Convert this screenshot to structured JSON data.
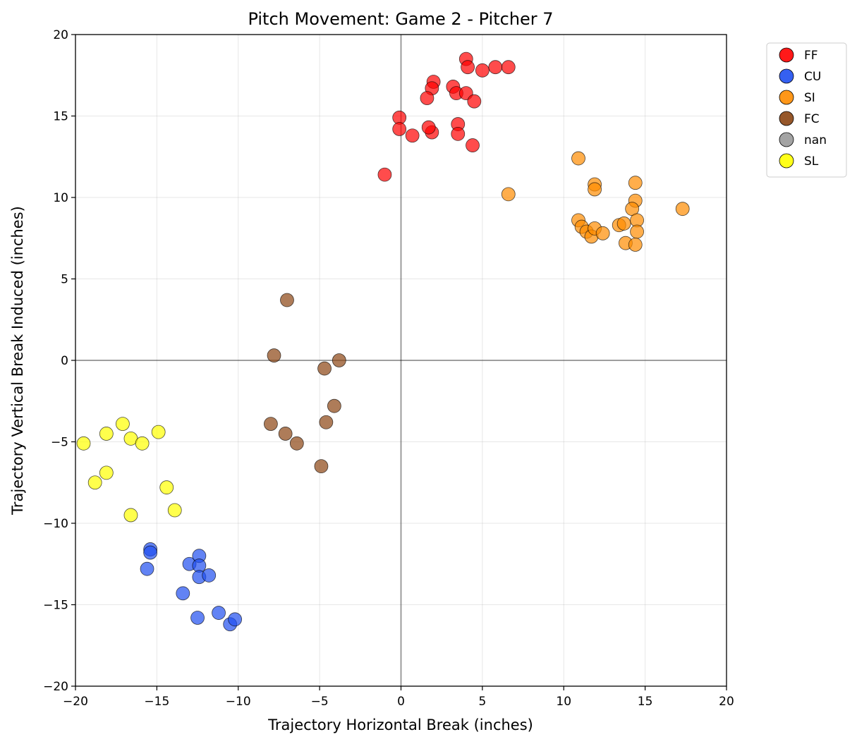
{
  "chart_data": {
    "type": "scatter",
    "title": "Pitch Movement: Game 2 - Pitcher 7",
    "xlabel": "Trajectory Horizontal Break (inches)",
    "ylabel": "Trajectory Vertical Break Induced (inches)",
    "xlim": [
      -20,
      20
    ],
    "ylim": [
      -20,
      20
    ],
    "xticks": [
      -20,
      -15,
      -10,
      -5,
      0,
      5,
      10,
      15,
      20
    ],
    "yticks": [
      -20,
      -15,
      -10,
      -5,
      0,
      5,
      10,
      15,
      20
    ],
    "xtick_labels": [
      "−20",
      "−15",
      "−10",
      "−5",
      "0",
      "5",
      "10",
      "15",
      "20"
    ],
    "ytick_labels": [
      "−20",
      "−15",
      "−10",
      "−5",
      "0",
      "5",
      "10",
      "15",
      "20"
    ],
    "grid": true,
    "reference_lines": {
      "x": 0,
      "y": 0
    },
    "legend_position": "outside-top-right",
    "series": [
      {
        "name": "FF",
        "color": "#ff0000",
        "points": [
          [
            4.0,
            18.5
          ],
          [
            4.1,
            18.0
          ],
          [
            5.0,
            17.8
          ],
          [
            5.8,
            18.0
          ],
          [
            6.6,
            18.0
          ],
          [
            2.0,
            17.1
          ],
          [
            1.9,
            16.7
          ],
          [
            3.2,
            16.8
          ],
          [
            3.4,
            16.4
          ],
          [
            4.0,
            16.4
          ],
          [
            4.5,
            15.9
          ],
          [
            1.6,
            16.1
          ],
          [
            -0.1,
            14.9
          ],
          [
            -0.1,
            14.2
          ],
          [
            0.7,
            13.8
          ],
          [
            1.9,
            14.0
          ],
          [
            1.7,
            14.3
          ],
          [
            3.5,
            14.5
          ],
          [
            3.5,
            13.9
          ],
          [
            4.4,
            13.2
          ],
          [
            -1.0,
            11.4
          ]
        ]
      },
      {
        "name": "CU",
        "color": "#1f4ff0",
        "points": [
          [
            -15.4,
            -11.6
          ],
          [
            -15.4,
            -11.8
          ],
          [
            -15.6,
            -12.8
          ],
          [
            -13.0,
            -12.5
          ],
          [
            -12.4,
            -12.0
          ],
          [
            -12.4,
            -12.6
          ],
          [
            -12.4,
            -13.3
          ],
          [
            -11.8,
            -13.2
          ],
          [
            -13.4,
            -14.3
          ],
          [
            -12.5,
            -15.8
          ],
          [
            -11.2,
            -15.5
          ],
          [
            -10.5,
            -16.2
          ],
          [
            -10.2,
            -15.9
          ]
        ]
      },
      {
        "name": "SI",
        "color": "#ff8c00",
        "points": [
          [
            10.9,
            12.4
          ],
          [
            6.6,
            10.2
          ],
          [
            11.9,
            10.8
          ],
          [
            11.9,
            10.5
          ],
          [
            14.4,
            10.9
          ],
          [
            14.4,
            9.8
          ],
          [
            14.2,
            9.3
          ],
          [
            17.3,
            9.3
          ],
          [
            10.9,
            8.6
          ],
          [
            11.1,
            8.2
          ],
          [
            11.4,
            7.9
          ],
          [
            11.7,
            7.6
          ],
          [
            11.9,
            8.1
          ],
          [
            12.4,
            7.8
          ],
          [
            13.4,
            8.3
          ],
          [
            13.7,
            8.4
          ],
          [
            14.5,
            8.6
          ],
          [
            14.5,
            7.9
          ],
          [
            13.8,
            7.2
          ],
          [
            14.4,
            7.1
          ]
        ]
      },
      {
        "name": "FC",
        "color": "#8b4513",
        "points": [
          [
            -7.0,
            3.7
          ],
          [
            -7.8,
            0.3
          ],
          [
            -3.8,
            0.0
          ],
          [
            -4.7,
            -0.5
          ],
          [
            -4.1,
            -2.8
          ],
          [
            -8.0,
            -3.9
          ],
          [
            -4.6,
            -3.8
          ],
          [
            -7.1,
            -4.5
          ],
          [
            -6.4,
            -5.1
          ],
          [
            -4.9,
            -6.5
          ]
        ]
      },
      {
        "name": "nan",
        "color": "#999999",
        "points": []
      },
      {
        "name": "SL",
        "color": "#ffff00",
        "points": [
          [
            -17.1,
            -3.9
          ],
          [
            -14.9,
            -4.4
          ],
          [
            -18.1,
            -4.5
          ],
          [
            -19.5,
            -5.1
          ],
          [
            -16.6,
            -4.8
          ],
          [
            -15.9,
            -5.1
          ],
          [
            -18.1,
            -6.9
          ],
          [
            -18.8,
            -7.5
          ],
          [
            -14.4,
            -7.8
          ],
          [
            -13.9,
            -9.2
          ],
          [
            -16.6,
            -9.5
          ]
        ]
      }
    ]
  }
}
